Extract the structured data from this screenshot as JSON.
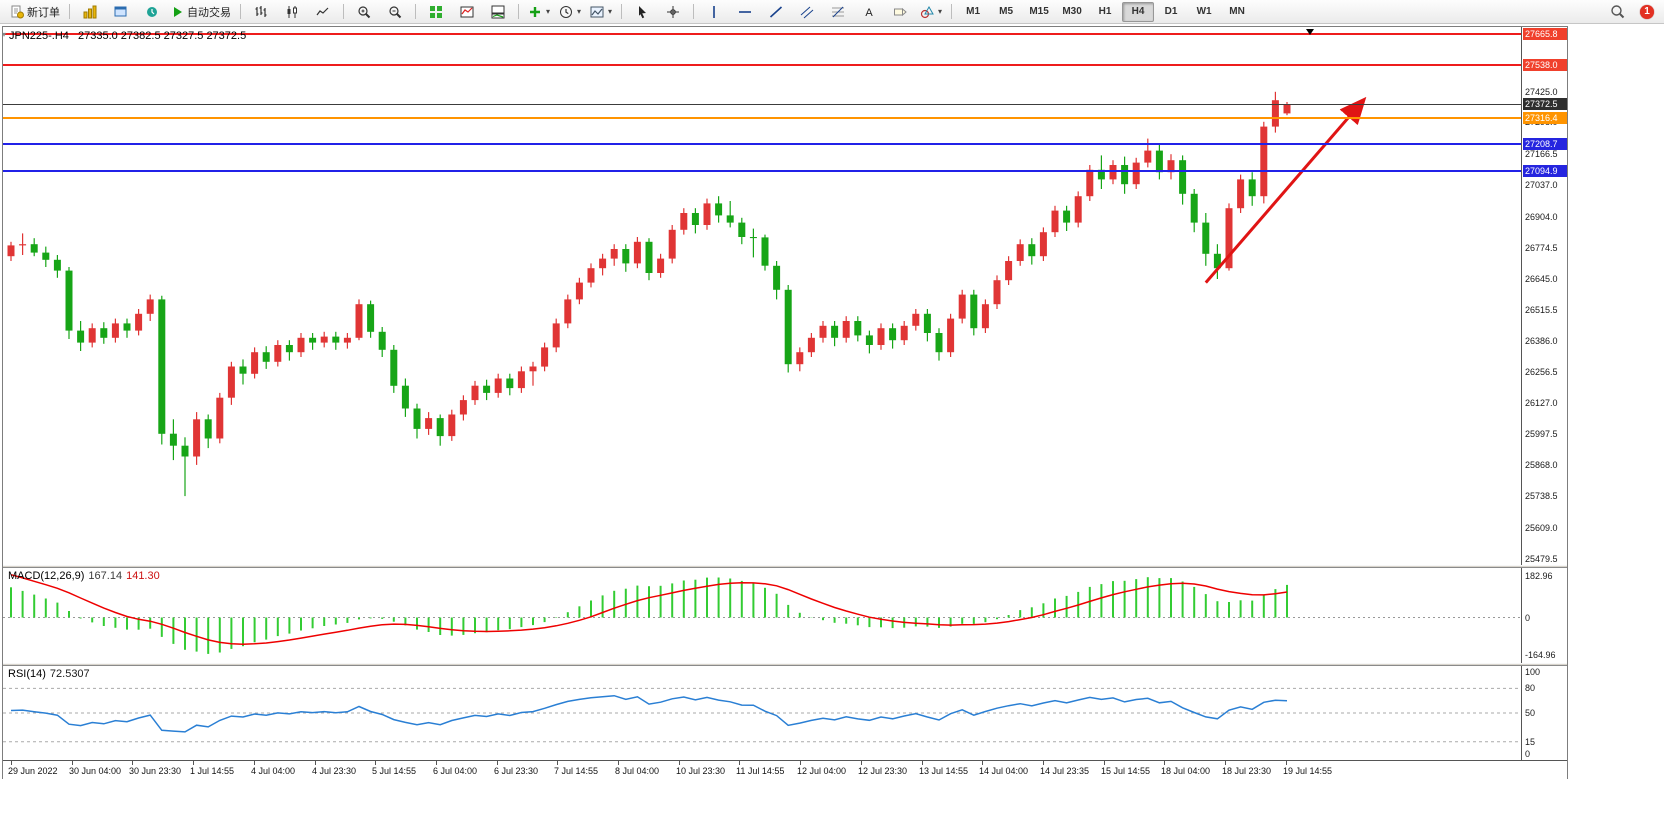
{
  "toolbar": {
    "badge_count": "1",
    "timeframes": [
      "M1",
      "M5",
      "M15",
      "M30",
      "H1",
      "H4",
      "D1",
      "W1",
      "MN"
    ],
    "active_timeframe": "H4",
    "groups": [
      {
        "items": [
          {
            "name": "new-order-button",
            "icon": "new-order-icon",
            "label": "新订单"
          }
        ]
      },
      {
        "items": [
          {
            "name": "charts-menu-button",
            "icon": "charts-icon"
          },
          {
            "name": "profiles-button",
            "icon": "profiles-icon"
          },
          {
            "name": "alerts-button",
            "icon": "alerts-icon"
          },
          {
            "name": "autotrade-button",
            "icon": "play-icon",
            "label": "自动交易"
          }
        ]
      },
      {
        "items": [
          {
            "name": "bar-chart-button",
            "icon": "bar-chart-icon"
          },
          {
            "name": "candlestick-chart-button",
            "icon": "candle-chart-icon"
          },
          {
            "name": "line-chart-button",
            "icon": "line-chart-icon"
          }
        ]
      },
      {
        "items": [
          {
            "name": "zoom-in-button",
            "icon": "zoom-in-icon"
          },
          {
            "name": "zoom-out-button",
            "icon": "zoom-out-icon"
          }
        ]
      },
      {
        "items": [
          {
            "name": "tile-windows-button",
            "icon": "tile-windows-icon"
          },
          {
            "name": "indicator-window-button",
            "icon": "indicator-window-icon"
          },
          {
            "name": "indicator-sub-window-button",
            "icon": "indicator-sub-icon"
          }
        ]
      },
      {
        "items": [
          {
            "name": "add-indicator-button",
            "icon": "add-indicator-icon",
            "caret": true
          },
          {
            "name": "periods-button",
            "icon": "clock-icon",
            "caret": true
          },
          {
            "name": "templates-button",
            "icon": "template-icon",
            "caret": true
          }
        ]
      },
      {
        "items": [
          {
            "name": "cursor-button",
            "icon": "cursor-icon"
          },
          {
            "name": "crosshair-button",
            "icon": "crosshair-icon"
          }
        ]
      },
      {
        "items": [
          {
            "name": "vertical-line-button",
            "icon": "vline-icon"
          },
          {
            "name": "horizontal-line-button",
            "icon": "hline-icon"
          },
          {
            "name": "trendline-button",
            "icon": "trendline-icon"
          },
          {
            "name": "channel-button",
            "icon": "channel-icon"
          },
          {
            "name": "fibonacci-button",
            "icon": "fibo-icon"
          },
          {
            "name": "text-button",
            "icon": "text-icon"
          },
          {
            "name": "label-button",
            "icon": "label-icon"
          },
          {
            "name": "shapes-button",
            "icon": "shapes-icon",
            "caret": true
          }
        ]
      }
    ]
  },
  "chart": {
    "title_symbol": "JPN225-.H4",
    "title_ohlc": "27335.0 27382.5 27327.5 27372.5",
    "y_axis_labels": [
      "27425.0",
      "27298.0",
      "27166.5",
      "27037.0",
      "26904.0",
      "26774.5",
      "26645.0",
      "26515.5",
      "26386.0",
      "26256.5",
      "26127.0",
      "25997.5",
      "25868.0",
      "25738.5",
      "25609.0",
      "25479.5"
    ],
    "levels": [
      {
        "price": 27665.8,
        "label": "27665.8",
        "color": "#ee1c1c",
        "width": 2,
        "tag_bg": "#f0402c",
        "tag_fg": "#ffffff"
      },
      {
        "price": 27538.0,
        "label": "27538.0",
        "color": "#ee1c1c",
        "width": 2,
        "tag_bg": "#f0402c",
        "tag_fg": "#ffffff"
      },
      {
        "price": 27372.5,
        "label": "27372.5",
        "color": "#3c3c3c",
        "width": 1,
        "tag_bg": "#2e2e2e",
        "tag_fg": "#ffffff"
      },
      {
        "price": 27316.4,
        "label": "27316.4",
        "color": "#ff9400",
        "width": 2,
        "tag_bg": "#ff9400",
        "tag_fg": "#ffffff"
      },
      {
        "price": 27208.7,
        "label": "27208.7",
        "color": "#2121e8",
        "width": 2,
        "tag_bg": "#2525df",
        "tag_fg": "#ffffff"
      },
      {
        "price": 27094.9,
        "label": "27094.9",
        "color": "#2121e8",
        "width": 2,
        "tag_bg": "#2525df",
        "tag_fg": "#ffffff"
      }
    ]
  },
  "macd": {
    "label": "MACD(12,26,9)",
    "main_value": "167.14",
    "signal_value": "141.30",
    "axis_labels": [
      "182.96",
      "0",
      "-164.96"
    ],
    "max": 182.96,
    "min": -164.96,
    "histogram_color": "#33cc33",
    "signal_color": "#ee0000"
  },
  "rsi": {
    "label": "RSI(14)",
    "value": "72.5307",
    "axis_labels": [
      "100",
      "80",
      "50",
      "15",
      "0"
    ],
    "level_lines": [
      80,
      50,
      15
    ],
    "line_color": "#2a7fd4"
  },
  "time_axis": {
    "labels": [
      "29 Jun 2022",
      "30 Jun 04:00",
      "30 Jun 23:30",
      "1 Jul 14:55",
      "4 Jul 04:00",
      "4 Jul 23:30",
      "5 Jul 14:55",
      "6 Jul 04:00",
      "6 Jul 23:30",
      "7 Jul 14:55",
      "8 Jul 04:00",
      "10 Jul 23:30",
      "11 Jul 14:55",
      "12 Jul 04:00",
      "12 Jul 23:30",
      "13 Jul 14:55",
      "14 Jul 04:00",
      "14 Jul 23:35",
      "15 Jul 14:55",
      "18 Jul 04:00",
      "18 Jul 23:30",
      "19 Jul 14:55"
    ]
  },
  "chart_data": {
    "type": "candlestick",
    "symbol": "JPN225-",
    "period": "H4",
    "current_bar": {
      "open": 27335.0,
      "high": 27382.5,
      "low": 27327.5,
      "close": 27372.5
    },
    "y_range": [
      25453,
      27695
    ],
    "up_color": "#e03535",
    "down_color": "#17a517",
    "candles": [
      [
        26740,
        26800,
        26720,
        26785
      ],
      [
        26785,
        26835,
        26745,
        26790
      ],
      [
        26790,
        26815,
        26740,
        26755
      ],
      [
        26755,
        26780,
        26695,
        26725
      ],
      [
        26725,
        26745,
        26650,
        26680
      ],
      [
        26680,
        26695,
        26395,
        26430
      ],
      [
        26430,
        26470,
        26345,
        26380
      ],
      [
        26380,
        26460,
        26360,
        26440
      ],
      [
        26440,
        26465,
        26375,
        26400
      ],
      [
        26400,
        26480,
        26380,
        26460
      ],
      [
        26460,
        26480,
        26400,
        26430
      ],
      [
        26430,
        26520,
        26410,
        26500
      ],
      [
        26500,
        26580,
        26470,
        26560
      ],
      [
        26560,
        26575,
        25955,
        26000
      ],
      [
        26000,
        26060,
        25890,
        25950
      ],
      [
        25950,
        25985,
        25740,
        25905
      ],
      [
        25905,
        26090,
        25870,
        26060
      ],
      [
        26060,
        26080,
        25940,
        25980
      ],
      [
        25980,
        26170,
        25960,
        26150
      ],
      [
        26150,
        26300,
        26120,
        26280
      ],
      [
        26280,
        26310,
        26205,
        26250
      ],
      [
        26250,
        26360,
        26230,
        26340
      ],
      [
        26340,
        26365,
        26270,
        26300
      ],
      [
        26300,
        26390,
        26280,
        26370
      ],
      [
        26370,
        26390,
        26305,
        26340
      ],
      [
        26340,
        26420,
        26320,
        26400
      ],
      [
        26400,
        26420,
        26350,
        26380
      ],
      [
        26380,
        26425,
        26360,
        26405
      ],
      [
        26405,
        26425,
        26350,
        26380
      ],
      [
        26380,
        26420,
        26355,
        26400
      ],
      [
        26400,
        26560,
        26390,
        26540
      ],
      [
        26540,
        26555,
        26400,
        26425
      ],
      [
        26425,
        26445,
        26320,
        26350
      ],
      [
        26350,
        26370,
        26170,
        26200
      ],
      [
        26200,
        26230,
        26070,
        26105
      ],
      [
        26105,
        26125,
        25980,
        26020
      ],
      [
        26020,
        26090,
        25995,
        26065
      ],
      [
        26065,
        26080,
        25950,
        25990
      ],
      [
        25990,
        26100,
        25970,
        26080
      ],
      [
        26080,
        26160,
        26055,
        26140
      ],
      [
        26140,
        26220,
        26120,
        26200
      ],
      [
        26200,
        26225,
        26140,
        26170
      ],
      [
        26170,
        26250,
        26150,
        26230
      ],
      [
        26230,
        26250,
        26160,
        26190
      ],
      [
        26190,
        26280,
        26170,
        26260
      ],
      [
        26260,
        26300,
        26200,
        26280
      ],
      [
        26280,
        26380,
        26260,
        26360
      ],
      [
        26360,
        26480,
        26340,
        26460
      ],
      [
        26460,
        26580,
        26440,
        26560
      ],
      [
        26560,
        26650,
        26540,
        26630
      ],
      [
        26630,
        26710,
        26610,
        26690
      ],
      [
        26690,
        26750,
        26660,
        26730
      ],
      [
        26730,
        26790,
        26700,
        26770
      ],
      [
        26770,
        26790,
        26675,
        26710
      ],
      [
        26710,
        26820,
        26690,
        26800
      ],
      [
        26800,
        26815,
        26640,
        26670
      ],
      [
        26670,
        26750,
        26650,
        26730
      ],
      [
        26730,
        26870,
        26710,
        26850
      ],
      [
        26850,
        26940,
        26830,
        26920
      ],
      [
        26920,
        26940,
        26835,
        26870
      ],
      [
        26870,
        26980,
        26850,
        26960
      ],
      [
        26960,
        26990,
        26880,
        26910
      ],
      [
        26910,
        26970,
        26860,
        26880
      ],
      [
        26880,
        26900,
        26790,
        26820
      ],
      [
        26820,
        26855,
        26735,
        26818
      ],
      [
        26818,
        26830,
        26680,
        26700
      ],
      [
        26700,
        26720,
        26560,
        26600
      ],
      [
        26600,
        26620,
        26255,
        26290
      ],
      [
        26290,
        26360,
        26260,
        26340
      ],
      [
        26340,
        26420,
        26320,
        26400
      ],
      [
        26400,
        26470,
        26380,
        26450
      ],
      [
        26450,
        26470,
        26365,
        26400
      ],
      [
        26400,
        26490,
        26380,
        26470
      ],
      [
        26470,
        26490,
        26385,
        26410
      ],
      [
        26410,
        26430,
        26335,
        26370
      ],
      [
        26370,
        26460,
        26350,
        26440
      ],
      [
        26440,
        26460,
        26355,
        26390
      ],
      [
        26390,
        26470,
        26370,
        26450
      ],
      [
        26450,
        26520,
        26430,
        26500
      ],
      [
        26500,
        26520,
        26385,
        26420
      ],
      [
        26420,
        26440,
        26305,
        26340
      ],
      [
        26340,
        26500,
        26320,
        26480
      ],
      [
        26480,
        26600,
        26460,
        26580
      ],
      [
        26580,
        26600,
        26410,
        26440
      ],
      [
        26440,
        26560,
        26420,
        26540
      ],
      [
        26540,
        26660,
        26520,
        26640
      ],
      [
        26640,
        26740,
        26620,
        26720
      ],
      [
        26720,
        26810,
        26700,
        26790
      ],
      [
        26790,
        26815,
        26705,
        26740
      ],
      [
        26740,
        26860,
        26720,
        26840
      ],
      [
        26840,
        26950,
        26820,
        26930
      ],
      [
        26930,
        26950,
        26845,
        26880
      ],
      [
        26880,
        27010,
        26860,
        26990
      ],
      [
        26990,
        27120,
        26970,
        27100
      ],
      [
        27100,
        27160,
        27020,
        27060
      ],
      [
        27060,
        27140,
        27040,
        27120
      ],
      [
        27120,
        27155,
        27000,
        27040
      ],
      [
        27040,
        27150,
        27020,
        27130
      ],
      [
        27130,
        27230,
        27110,
        27180
      ],
      [
        27180,
        27205,
        27060,
        27090
      ],
      [
        27090,
        27165,
        27060,
        27140
      ],
      [
        27140,
        27160,
        26955,
        27000
      ],
      [
        27000,
        27020,
        26840,
        26880
      ],
      [
        26880,
        26920,
        26700,
        26750
      ],
      [
        26750,
        26790,
        26645,
        26690
      ],
      [
        26690,
        26960,
        26680,
        26940
      ],
      [
        26940,
        27080,
        26920,
        27060
      ],
      [
        27060,
        27090,
        26950,
        26990
      ],
      [
        26990,
        27300,
        26960,
        27280
      ],
      [
        27280,
        27425,
        27255,
        27390
      ],
      [
        27335,
        27382.5,
        27327.5,
        27372.5
      ]
    ],
    "annotations": [
      {
        "type": "trend-arrow",
        "color": "#e01414",
        "from": [
          103,
          26630
        ],
        "to": [
          116.5,
          27385
        ]
      }
    ],
    "shift_marker_index": 112,
    "indicators": [
      {
        "name": "MACD",
        "params": [
          12,
          26,
          9
        ],
        "last_main": 167.14,
        "last_signal": 141.3,
        "axis": [
          182.96,
          0,
          -164.96
        ]
      },
      {
        "name": "RSI",
        "params": [
          14
        ],
        "last_value": 72.5307,
        "axis": [
          100,
          80,
          50,
          15,
          0
        ]
      }
    ]
  }
}
